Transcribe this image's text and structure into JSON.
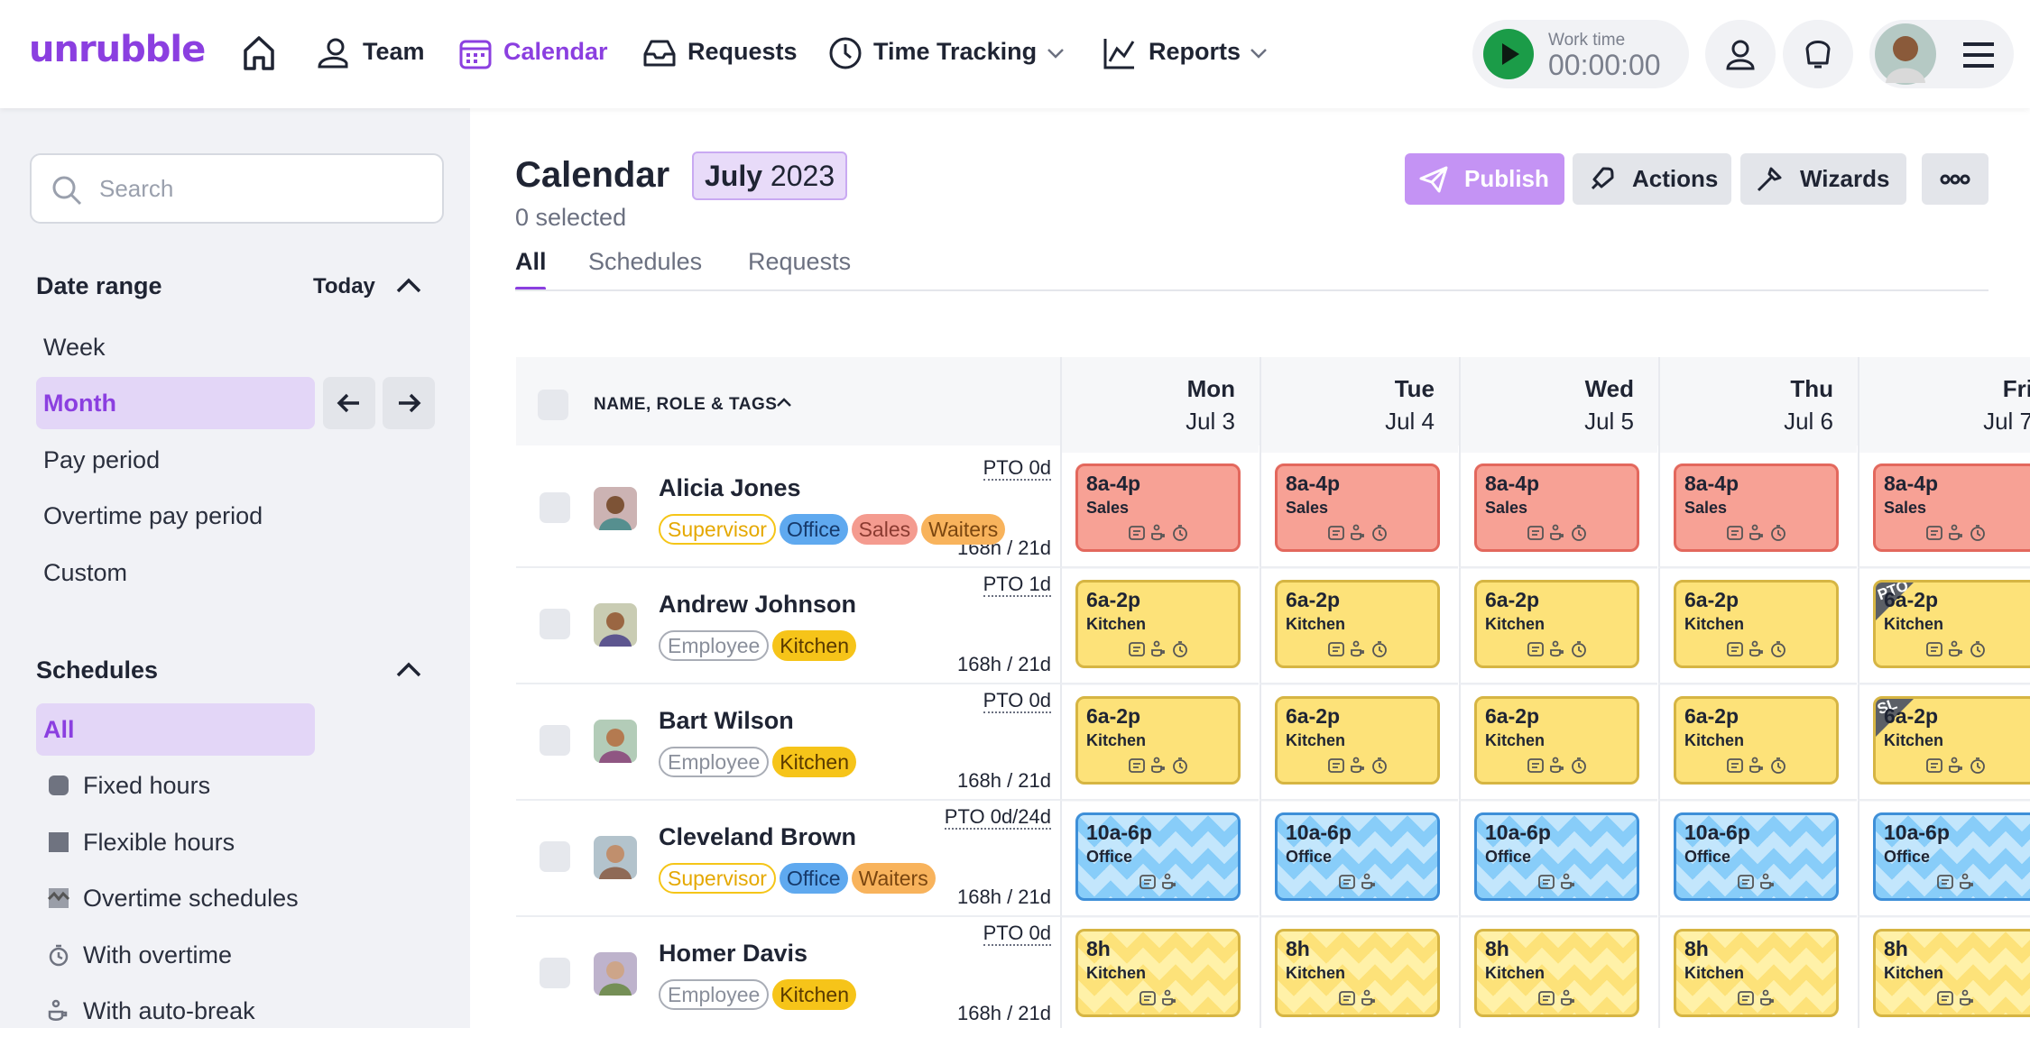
{
  "nav": {
    "logo": "unrubble",
    "items": [
      "Team",
      "Calendar",
      "Requests",
      "Time Tracking",
      "Reports"
    ],
    "active": 1,
    "work_time_label": "Work time",
    "work_time": "00:00:00"
  },
  "sidebar": {
    "search_placeholder": "Search",
    "date_range": {
      "title": "Date range",
      "today": "Today",
      "options": [
        "Week",
        "Month",
        "Pay period",
        "Overtime pay period",
        "Custom"
      ],
      "selected": 1
    },
    "schedules": {
      "title": "Schedules",
      "options": [
        "All",
        "Fixed hours",
        "Flexible hours",
        "Overtime schedules",
        "With overtime",
        "With auto-break"
      ],
      "selected": 0
    }
  },
  "header": {
    "title": "Calendar",
    "month": "July",
    "year": "2023",
    "selected": "0 selected",
    "buttons": [
      "Publish",
      "Actions",
      "Wizards"
    ],
    "tabs": [
      "All",
      "Schedules",
      "Requests"
    ],
    "active_tab": 0
  },
  "grid": {
    "name_header": "NAME, ROLE & TAGS",
    "days": [
      {
        "day": "Mon",
        "date": "Jul 3"
      },
      {
        "day": "Tue",
        "date": "Jul 4"
      },
      {
        "day": "Wed",
        "date": "Jul 5"
      },
      {
        "day": "Thu",
        "date": "Jul 6"
      },
      {
        "day": "Fri",
        "date": "Jul 7"
      }
    ],
    "employees": [
      {
        "name": "Alicia Jones",
        "pto": "PTO 0d",
        "hours": "168h / 21d",
        "tags": [
          {
            "label": "Supervisor",
            "color": "yellow"
          },
          {
            "label": "Office",
            "color": "blue"
          },
          {
            "label": "Sales",
            "color": "red"
          },
          {
            "label": "Waiters",
            "color": "orange"
          }
        ],
        "shift_color": "red",
        "shifts": [
          {
            "time": "8a-4p",
            "place": "Sales"
          },
          {
            "time": "8a-4p",
            "place": "Sales"
          },
          {
            "time": "8a-4p",
            "place": "Sales"
          },
          {
            "time": "8a-4p",
            "place": "Sales"
          },
          {
            "time": "8a-4p",
            "place": "Sales"
          }
        ]
      },
      {
        "name": "Andrew Johnson",
        "pto": "PTO 1d",
        "hours": "168h / 21d",
        "tags": [
          {
            "label": "Employee",
            "color": "gray"
          },
          {
            "label": "Kitchen",
            "color": "amber"
          }
        ],
        "shift_color": "yellow",
        "shifts": [
          {
            "time": "6a-2p",
            "place": "Kitchen"
          },
          {
            "time": "6a-2p",
            "place": "Kitchen"
          },
          {
            "time": "6a-2p",
            "place": "Kitchen"
          },
          {
            "time": "6a-2p",
            "place": "Kitchen"
          },
          {
            "time": "6a-2p",
            "place": "Kitchen",
            "badge": "PTO"
          }
        ]
      },
      {
        "name": "Bart Wilson",
        "pto": "PTO 0d",
        "hours": "168h / 21d",
        "tags": [
          {
            "label": "Employee",
            "color": "gray"
          },
          {
            "label": "Kitchen",
            "color": "amber"
          }
        ],
        "shift_color": "yellow",
        "shifts": [
          {
            "time": "6a-2p",
            "place": "Kitchen"
          },
          {
            "time": "6a-2p",
            "place": "Kitchen"
          },
          {
            "time": "6a-2p",
            "place": "Kitchen"
          },
          {
            "time": "6a-2p",
            "place": "Kitchen"
          },
          {
            "time": "6a-2p",
            "place": "Kitchen",
            "badge": "SL"
          }
        ]
      },
      {
        "name": "Cleveland Brown",
        "pto": "PTO 0d/24d",
        "hours": "168h / 21d",
        "tags": [
          {
            "label": "Supervisor",
            "color": "yellow"
          },
          {
            "label": "Office",
            "color": "blue"
          },
          {
            "label": "Waiters",
            "color": "orange"
          }
        ],
        "shift_color": "blue-zigzag",
        "shifts": [
          {
            "time": "10a-6p",
            "place": "Office"
          },
          {
            "time": "10a-6p",
            "place": "Office"
          },
          {
            "time": "10a-6p",
            "place": "Office"
          },
          {
            "time": "10a-6p",
            "place": "Office"
          },
          {
            "time": "10a-6p",
            "place": "Office"
          }
        ]
      },
      {
        "name": "Homer Davis",
        "pto": "PTO 0d",
        "hours": "168h / 21d",
        "tags": [
          {
            "label": "Employee",
            "color": "gray"
          },
          {
            "label": "Kitchen",
            "color": "amber"
          }
        ],
        "shift_color": "yellow-zigzag",
        "shifts": [
          {
            "time": "8h",
            "place": "Kitchen"
          },
          {
            "time": "8h",
            "place": "Kitchen"
          },
          {
            "time": "8h",
            "place": "Kitchen"
          },
          {
            "time": "8h",
            "place": "Kitchen"
          },
          {
            "time": "8h",
            "place": "Kitchen"
          }
        ]
      }
    ]
  }
}
